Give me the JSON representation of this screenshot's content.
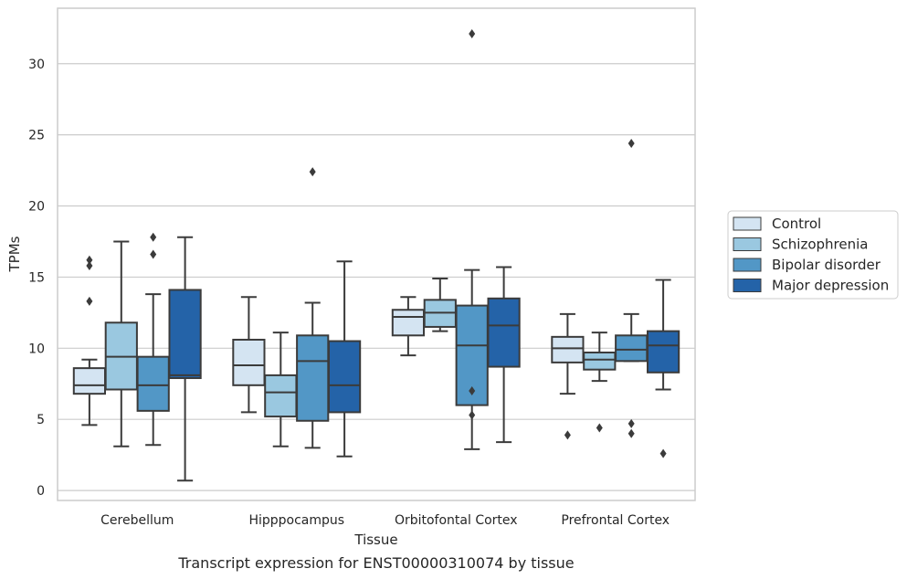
{
  "chart_data": {
    "type": "boxplot",
    "title": "",
    "caption": "Transcript expression for ENST00000310074 by tissue",
    "xlabel": "Tissue",
    "ylabel": "TPMs",
    "ylim": [
      -0.7,
      33.9
    ],
    "yticks": [
      0,
      5,
      10,
      15,
      20,
      25,
      30
    ],
    "grid": "horizontal",
    "legend_position": "right",
    "categories": [
      "Cerebellum",
      "Hipppocampus",
      "Orbitofontal Cortex",
      "Prefrontal Cortex"
    ],
    "series": [
      {
        "name": "Control",
        "color": "#d4e4f2",
        "boxes": [
          {
            "whislo": 4.6,
            "q1": 6.8,
            "med": 7.4,
            "q3": 8.6,
            "whishi": 9.2,
            "fliers": [
              16.2,
              15.8,
              13.3
            ]
          },
          {
            "whislo": 5.5,
            "q1": 7.4,
            "med": 8.8,
            "q3": 10.6,
            "whishi": 13.6,
            "fliers": []
          },
          {
            "whislo": 9.5,
            "q1": 10.9,
            "med": 12.2,
            "q3": 12.7,
            "whishi": 13.6,
            "fliers": []
          },
          {
            "whislo": 6.8,
            "q1": 9.0,
            "med": 10.0,
            "q3": 10.8,
            "whishi": 12.4,
            "fliers": [
              3.9
            ]
          }
        ]
      },
      {
        "name": "Schizophrenia",
        "color": "#9ac8e0",
        "boxes": [
          {
            "whislo": 3.1,
            "q1": 7.1,
            "med": 9.4,
            "q3": 11.8,
            "whishi": 17.5,
            "fliers": []
          },
          {
            "whislo": 3.1,
            "q1": 5.2,
            "med": 6.9,
            "q3": 8.1,
            "whishi": 11.1,
            "fliers": []
          },
          {
            "whislo": 11.2,
            "q1": 11.5,
            "med": 12.5,
            "q3": 13.4,
            "whishi": 14.9,
            "fliers": []
          },
          {
            "whislo": 7.7,
            "q1": 8.5,
            "med": 9.2,
            "q3": 9.7,
            "whishi": 11.1,
            "fliers": [
              4.4
            ]
          }
        ]
      },
      {
        "name": "Bipolar disorder",
        "color": "#5297c6",
        "boxes": [
          {
            "whislo": 3.2,
            "q1": 5.6,
            "med": 7.4,
            "q3": 9.4,
            "whishi": 13.8,
            "fliers": [
              17.8,
              16.6
            ]
          },
          {
            "whislo": 3.0,
            "q1": 4.9,
            "med": 9.1,
            "q3": 10.9,
            "whishi": 13.2,
            "fliers": [
              22.4
            ]
          },
          {
            "whislo": 2.9,
            "q1": 6.0,
            "med": 10.2,
            "q3": 13.0,
            "whishi": 15.5,
            "fliers": [
              32.1,
              7.0,
              5.3
            ]
          },
          {
            "whislo": 9.1,
            "q1": 9.1,
            "med": 9.9,
            "q3": 10.9,
            "whishi": 12.4,
            "fliers": [
              24.4,
              4.7,
              4.0
            ]
          }
        ]
      },
      {
        "name": "Major depression",
        "color": "#2463a8",
        "boxes": [
          {
            "whislo": 0.7,
            "q1": 7.9,
            "med": 8.1,
            "q3": 14.1,
            "whishi": 17.8,
            "fliers": []
          },
          {
            "whislo": 2.4,
            "q1": 5.5,
            "med": 7.4,
            "q3": 10.5,
            "whishi": 16.1,
            "fliers": []
          },
          {
            "whislo": 3.4,
            "q1": 8.7,
            "med": 11.6,
            "q3": 13.5,
            "whishi": 15.7,
            "fliers": []
          },
          {
            "whislo": 7.1,
            "q1": 8.3,
            "med": 10.2,
            "q3": 11.2,
            "whishi": 14.8,
            "fliers": [
              2.6
            ]
          }
        ]
      }
    ]
  }
}
